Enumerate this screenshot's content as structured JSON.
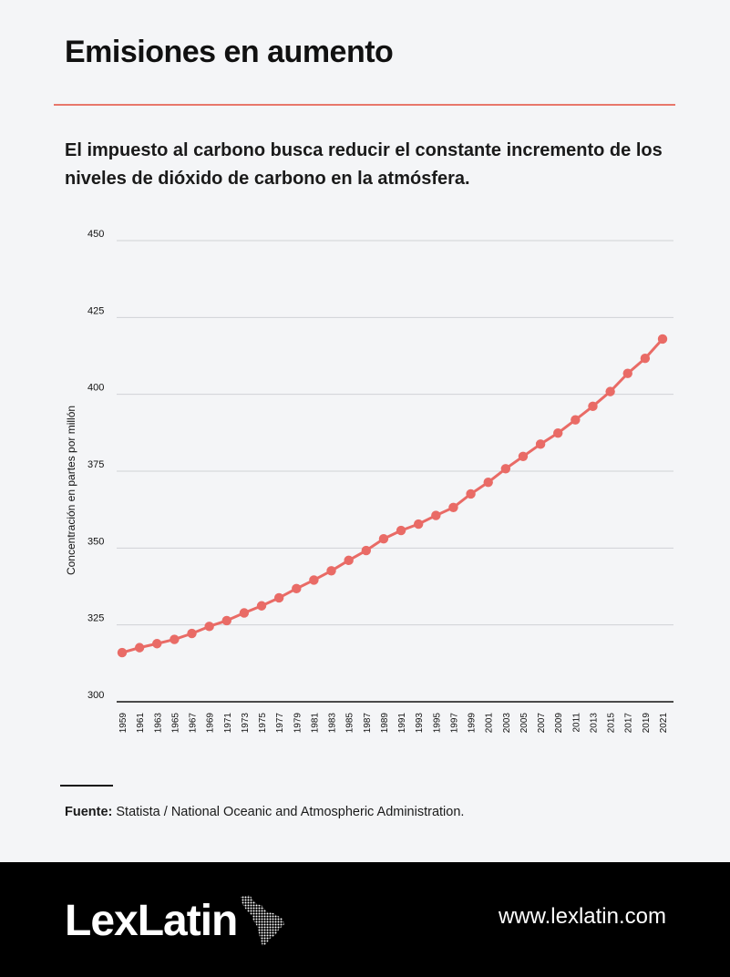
{
  "header": {
    "title": "Emisiones en aumento",
    "subtitle": "El impuesto al carbono busca reducir el constante incremento de los niveles de dióxido de carbono en la atmósfera."
  },
  "source": {
    "label": "Fuente:",
    "text": "Statista / National Oceanic and Atmospheric Administration."
  },
  "footer": {
    "brand": "LexLatin",
    "url": "www.lexlatin.com",
    "logo_icon": "latin-america-map-icon"
  },
  "colors": {
    "accent": "#e8776b",
    "line": "#e96b66",
    "grid": "#cfd2d6"
  },
  "chart_data": {
    "type": "line",
    "title": "",
    "xlabel": "",
    "ylabel": "Concentración en partes por millón",
    "ylim": [
      300,
      450
    ],
    "yticks": [
      300,
      325,
      350,
      375,
      400,
      425,
      450
    ],
    "grid": true,
    "x": [
      "1959",
      "1961",
      "1963",
      "1965",
      "1967",
      "1969",
      "1971",
      "1973",
      "1975",
      "1977",
      "1979",
      "1981",
      "1983",
      "1985",
      "1987",
      "1989",
      "1991",
      "1993",
      "1995",
      "1997",
      "1999",
      "2001",
      "2003",
      "2005",
      "2007",
      "2009",
      "2011",
      "2013",
      "2015",
      "2017",
      "2019",
      "2021"
    ],
    "series": [
      {
        "values": [
          315.98,
          317.6,
          318.9,
          320.3,
          322.2,
          324.5,
          326.4,
          328.9,
          331.2,
          333.8,
          336.8,
          339.6,
          342.6,
          346.0,
          349.2,
          353.0,
          355.7,
          357.8,
          360.6,
          363.2,
          367.6,
          371.4,
          375.8,
          379.8,
          383.8,
          387.4,
          391.7,
          396.1,
          400.9,
          406.8,
          411.7,
          418.0
        ]
      }
    ]
  }
}
